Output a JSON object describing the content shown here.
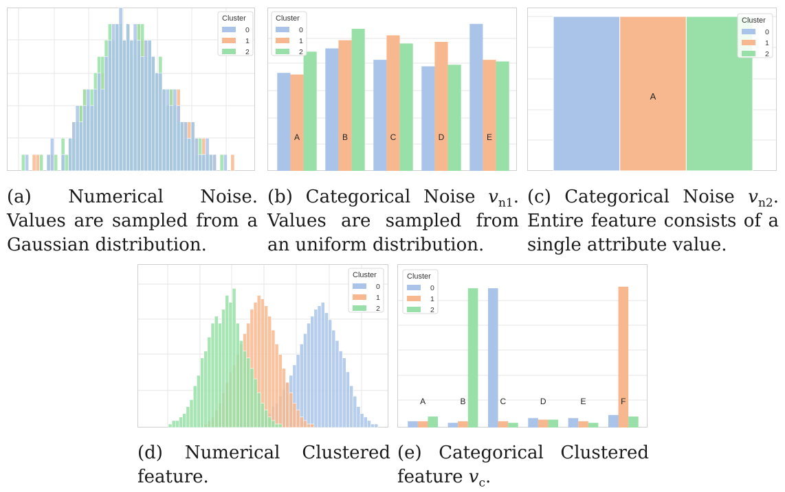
{
  "colors": {
    "0": "#a9c4e8",
    "1": "#f8b88f",
    "2": "#99e0a8",
    "grid": "#e5e5e5",
    "frame": "#cfcfcf"
  },
  "legend": {
    "title": "Cluster",
    "labels": [
      "0",
      "1",
      "2"
    ]
  },
  "captions": {
    "a": {
      "text": "(a) Numerical Noise. Values are sampled from a Gaussian distribution."
    },
    "b": {
      "pre": "(b) Categorical Noise ",
      "sym": "v",
      "sub": "n1",
      "post": ". Values are sampled from an uniform distribution."
    },
    "c": {
      "pre": "(c) Categorical Noise ",
      "sym": "v",
      "sub": "n2",
      "post": ". Entire feature consists of a single attribute value."
    },
    "d": {
      "text": "(d) Numerical Clustered feature."
    },
    "e": {
      "pre": "(e) Categorical Clustered feature ",
      "sym": "v",
      "sub": "c",
      "post": "."
    }
  },
  "chart_data": [
    {
      "id": "a",
      "type": "histogram",
      "grid": true,
      "legend": "top-right",
      "bins": 64,
      "ylim": [
        0,
        10
      ],
      "series": [
        {
          "name": "0",
          "counts": [
            0,
            0,
            1,
            0,
            0,
            0,
            0,
            0,
            1,
            2,
            0,
            0,
            1,
            0,
            2,
            3,
            4,
            3,
            4,
            5,
            4,
            5,
            6,
            5,
            7,
            8,
            9,
            9,
            10,
            8,
            9,
            8,
            9,
            8,
            7,
            8,
            8,
            7,
            6,
            6,
            5,
            5,
            4,
            5,
            4,
            3,
            3,
            2,
            3,
            2,
            1,
            1,
            2,
            1,
            1,
            0,
            0,
            1,
            0,
            0,
            0,
            0,
            0,
            0
          ]
        },
        {
          "name": "1",
          "counts": [
            0,
            0,
            0,
            0,
            1,
            1,
            0,
            0,
            0,
            1,
            0,
            0,
            1,
            0,
            2,
            3,
            2,
            4,
            5,
            4,
            3,
            4,
            5,
            6,
            7,
            8,
            7,
            9,
            8,
            8,
            9,
            7,
            8,
            9,
            8,
            8,
            7,
            7,
            6,
            6,
            5,
            4,
            5,
            4,
            5,
            3,
            3,
            3,
            2,
            2,
            1,
            2,
            1,
            0,
            1,
            0,
            0,
            0,
            0,
            1,
            0,
            0,
            0,
            0
          ]
        },
        {
          "name": "2",
          "counts": [
            0,
            1,
            0,
            0,
            0,
            0,
            1,
            0,
            1,
            0,
            1,
            0,
            2,
            1,
            2,
            2,
            3,
            4,
            5,
            4,
            5,
            6,
            7,
            7,
            8,
            9,
            8,
            9,
            9,
            8,
            9,
            8,
            8,
            9,
            9,
            7,
            8,
            7,
            6,
            7,
            5,
            4,
            5,
            4,
            3,
            3,
            2,
            2,
            3,
            1,
            2,
            1,
            1,
            1,
            0,
            0,
            1,
            0,
            0,
            0,
            0,
            0,
            0,
            0
          ]
        }
      ]
    },
    {
      "id": "b",
      "type": "bar",
      "grid": true,
      "legend": "top-left",
      "categories": [
        "A",
        "B",
        "C",
        "D",
        "E"
      ],
      "ylim": [
        0,
        1.0
      ],
      "series": [
        {
          "name": "0",
          "values": [
            0.6,
            0.75,
            0.68,
            0.64,
            0.9
          ]
        },
        {
          "name": "1",
          "values": [
            0.59,
            0.8,
            0.83,
            0.79,
            0.68
          ]
        },
        {
          "name": "2",
          "values": [
            0.73,
            0.87,
            0.78,
            0.65,
            0.67
          ]
        }
      ]
    },
    {
      "id": "c",
      "type": "bar",
      "grid": true,
      "legend": "top-right",
      "categories": [
        "A"
      ],
      "ylim": [
        0,
        1.0
      ],
      "series": [
        {
          "name": "0",
          "values": [
            1.0
          ]
        },
        {
          "name": "1",
          "values": [
            1.0
          ]
        },
        {
          "name": "2",
          "values": [
            1.0
          ]
        }
      ]
    },
    {
      "id": "d",
      "type": "histogram",
      "grid": true,
      "legend": "top-right",
      "bins": 66,
      "ylim": [
        0,
        45
      ],
      "series": [
        {
          "name": "0",
          "counts": [
            0,
            0,
            0,
            0,
            0,
            0,
            0,
            0,
            0,
            0,
            0,
            0,
            0,
            0,
            0,
            0,
            0,
            0,
            0,
            0,
            0,
            0,
            0,
            0,
            0,
            0,
            1,
            0,
            1,
            1,
            2,
            2,
            3,
            3,
            4,
            6,
            7,
            9,
            11,
            13,
            15,
            18,
            21,
            24,
            27,
            30,
            32,
            34,
            35,
            36,
            33,
            31,
            28,
            25,
            22,
            20,
            16,
            12,
            9,
            6,
            4,
            3,
            2,
            1,
            1,
            0
          ]
        },
        {
          "name": "1",
          "counts": [
            0,
            0,
            0,
            0,
            0,
            0,
            0,
            0,
            0,
            0,
            0,
            0,
            0,
            0,
            0,
            0,
            1,
            2,
            3,
            5,
            7,
            10,
            13,
            16,
            18,
            21,
            24,
            27,
            30,
            34,
            36,
            38,
            37,
            35,
            32,
            28,
            24,
            21,
            17,
            13,
            10,
            7,
            5,
            3,
            2,
            1,
            1,
            0,
            0,
            0,
            0,
            0,
            0,
            0,
            0,
            0,
            0,
            0,
            0,
            0,
            0,
            0,
            0,
            0,
            0,
            0
          ]
        },
        {
          "name": "2",
          "counts": [
            0,
            0,
            0,
            0,
            0,
            0,
            1,
            2,
            2,
            3,
            4,
            6,
            8,
            12,
            15,
            20,
            22,
            26,
            30,
            32,
            30,
            34,
            38,
            36,
            40,
            30,
            25,
            22,
            20,
            17,
            14,
            10,
            7,
            5,
            3,
            2,
            1,
            1,
            0,
            0,
            0,
            0,
            0,
            0,
            0,
            0,
            0,
            0,
            0,
            0,
            0,
            0,
            0,
            0,
            0,
            0,
            0,
            0,
            0,
            0,
            0,
            0,
            0,
            0,
            0,
            0
          ]
        }
      ]
    },
    {
      "id": "e",
      "type": "bar",
      "grid": true,
      "legend": "top-left",
      "categories": [
        "A",
        "B",
        "C",
        "D",
        "E",
        "F"
      ],
      "ylim": [
        0,
        1.0
      ],
      "series": [
        {
          "name": "0",
          "values": [
            0.04,
            0.03,
            0.89,
            0.06,
            0.06,
            0.08
          ]
        },
        {
          "name": "1",
          "values": [
            0.04,
            0.04,
            0.04,
            0.05,
            0.04,
            0.9
          ]
        },
        {
          "name": "2",
          "values": [
            0.07,
            0.89,
            0.03,
            0.05,
            0.03,
            0.07
          ]
        }
      ]
    }
  ]
}
